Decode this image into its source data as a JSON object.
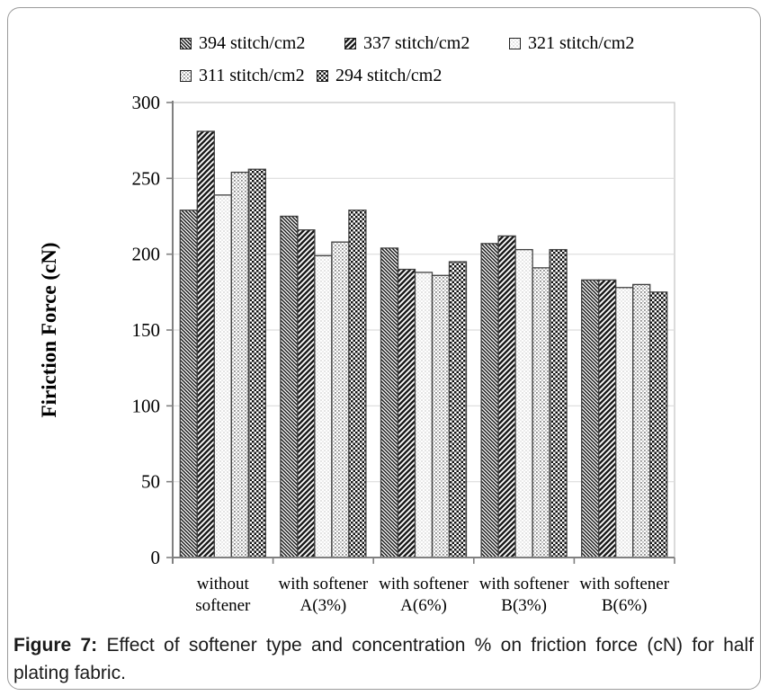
{
  "figure": {
    "caption_prefix": "Figure 7:",
    "caption_text": "Effect of softener type and concentration % on friction force (cN) for half plating fabric."
  },
  "chart_data": {
    "type": "bar",
    "title": "",
    "xlabel": "",
    "ylabel": "Firiction Force (cN)",
    "ylim": [
      0,
      300
    ],
    "yticks": [
      0,
      50,
      100,
      150,
      200,
      250,
      300
    ],
    "grid": true,
    "legend_position": "top",
    "legend_rows": [
      3,
      2
    ],
    "categories": [
      "without softener",
      "with softener A(3%)",
      "with softener A(6%)",
      "with softener B(3%)",
      "with softener B(6%)"
    ],
    "category_lines": [
      [
        "without",
        "softener"
      ],
      [
        "with softener",
        "A(3%)"
      ],
      [
        "with softener",
        "A(6%)"
      ],
      [
        "with softener",
        "B(3%)"
      ],
      [
        "with softener",
        "B(6%)"
      ]
    ],
    "series": [
      {
        "name": "394 stitch/cm2",
        "pattern": "diag-down-dense",
        "values": [
          229,
          225,
          204,
          207,
          183
        ]
      },
      {
        "name": "337 stitch/cm2",
        "pattern": "diag-up-wide",
        "values": [
          281,
          216,
          190,
          212,
          183
        ]
      },
      {
        "name": "321 stitch/cm2",
        "pattern": "light-dots",
        "values": [
          239,
          199,
          188,
          203,
          178
        ]
      },
      {
        "name": "311 stitch/cm2",
        "pattern": "gray-checker",
        "values": [
          254,
          208,
          186,
          191,
          180
        ]
      },
      {
        "name": "294 stitch/cm2",
        "pattern": "dark-checker",
        "values": [
          256,
          229,
          195,
          203,
          175
        ]
      }
    ],
    "colors": {
      "bar_stroke": "#3f3f3f",
      "axis": "#808080",
      "grid": "#dddddd",
      "frame": "#c3c3c3",
      "text": "#000000"
    }
  }
}
